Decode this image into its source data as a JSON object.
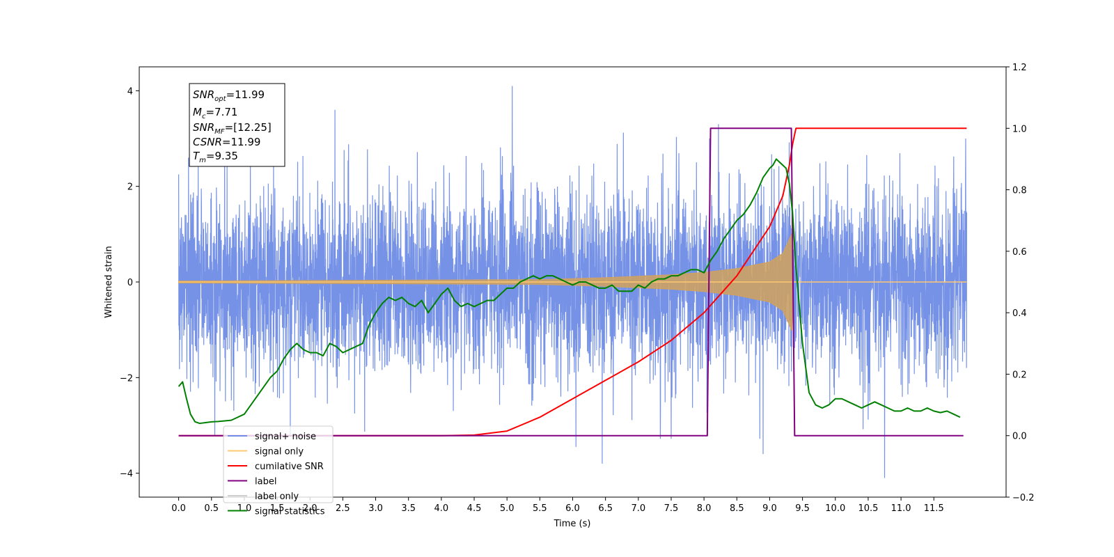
{
  "chart_data": {
    "type": "line",
    "xlabel": "Time (s)",
    "ylabel_left": "Whitened strain",
    "xlim": [
      -0.6,
      12.6
    ],
    "ylim_left": [
      -4.5,
      4.5
    ],
    "ylim_right": [
      -0.2,
      1.2
    ],
    "x_ticks": [
      "0.0",
      "0.5",
      "1.0",
      "1.5",
      "2.0",
      "2.5",
      "3.0",
      "3.5",
      "4.0",
      "4.5",
      "5.0",
      "5.5",
      "6.0",
      "6.5",
      "7.0",
      "7.5",
      "8.0",
      "8.5",
      "9.0",
      "9.5",
      "10.0",
      "10.5",
      "11.0",
      "11.5"
    ],
    "y_ticks_left": [
      "−4",
      "−2",
      "0",
      "2",
      "4"
    ],
    "y_ticks_right": [
      "−0.2",
      "0.0",
      "0.2",
      "0.4",
      "0.6",
      "0.8",
      "1.0",
      "1.2"
    ],
    "stats_box": {
      "snr_opt": {
        "label": "SNR",
        "sub": "opt",
        "value": "=11.99"
      },
      "mc": {
        "label": "M",
        "sub": "c",
        "value": "=7.71"
      },
      "snr_mf": {
        "label": "SNR",
        "sub": "MF",
        "value": "=[12.25]"
      },
      "csnr": {
        "label": "CSNR",
        "value": "=11.99"
      },
      "tm": {
        "label": "T",
        "sub": "m",
        "value": "=9.35"
      }
    },
    "legend": {
      "placement": "lower-left",
      "entries": [
        {
          "label": "signal+ noise",
          "color": "#6f8ce6"
        },
        {
          "label": "signal only",
          "color": "#ffc870"
        },
        {
          "label": "cumilative SNR",
          "color": "#ff0000"
        },
        {
          "label": "label",
          "color": "#800080"
        },
        {
          "label": "label only",
          "color": "#cfcfcf"
        },
        {
          "label": "signal statistics",
          "color": "#008000"
        }
      ]
    },
    "series": [
      {
        "name": "signal+ noise",
        "axis": "left",
        "color": "#6f8ce6",
        "x_range": [
          0.0,
          12.0
        ],
        "amplitude_range": [
          -4.1,
          4.1
        ],
        "peaks": [
          {
            "x": 0.0,
            "y": 2.25
          },
          {
            "x": 0.15,
            "y": 2.6
          },
          {
            "x": 0.55,
            "y": -3.2
          },
          {
            "x": 1.7,
            "y": -3.2
          },
          {
            "x": 2.38,
            "y": 3.6
          },
          {
            "x": 5.08,
            "y": 4.1
          },
          {
            "x": 6.05,
            "y": -3.45
          },
          {
            "x": 6.45,
            "y": -3.8
          },
          {
            "x": 8.22,
            "y": 3.3
          },
          {
            "x": 8.9,
            "y": -3.6
          },
          {
            "x": 10.75,
            "y": -4.1
          }
        ]
      },
      {
        "name": "signal only",
        "axis": "left",
        "color": "#d2a25c",
        "x": [
          0.0,
          5.5,
          6.5,
          7.5,
          8.0,
          8.5,
          9.0,
          9.2,
          9.3,
          9.35,
          9.36,
          12.0
        ],
        "envelope": [
          0.02,
          0.05,
          0.09,
          0.15,
          0.2,
          0.28,
          0.42,
          0.6,
          0.9,
          1.05,
          0.0,
          0.0
        ]
      },
      {
        "name": "cumilative SNR",
        "axis": "right",
        "color": "#ff0000",
        "x": [
          0.0,
          4.0,
          4.5,
          5.0,
          5.5,
          6.0,
          6.5,
          7.0,
          7.5,
          8.0,
          8.5,
          9.0,
          9.2,
          9.3,
          9.35,
          9.4,
          12.0
        ],
        "y": [
          0.0,
          0.0,
          0.002,
          0.015,
          0.06,
          0.12,
          0.18,
          0.24,
          0.31,
          0.4,
          0.52,
          0.68,
          0.78,
          0.88,
          0.95,
          1.0,
          1.0
        ]
      },
      {
        "name": "label",
        "axis": "right",
        "color": "#800080",
        "x": [
          0.0,
          8.05,
          8.1,
          9.33,
          9.38,
          11.95
        ],
        "y": [
          0.0,
          0.0,
          1.0,
          1.0,
          0.0,
          0.0
        ]
      },
      {
        "name": "signal statistics",
        "axis": "right",
        "color": "#008000",
        "x": [
          0.0,
          0.06,
          0.12,
          0.18,
          0.25,
          0.32,
          0.4,
          0.5,
          0.6,
          0.7,
          0.8,
          0.9,
          1.0,
          1.1,
          1.2,
          1.3,
          1.4,
          1.5,
          1.6,
          1.7,
          1.8,
          1.9,
          2.0,
          2.1,
          2.2,
          2.3,
          2.4,
          2.5,
          2.6,
          2.7,
          2.8,
          2.9,
          3.0,
          3.1,
          3.2,
          3.3,
          3.4,
          3.5,
          3.6,
          3.7,
          3.8,
          3.9,
          4.0,
          4.1,
          4.2,
          4.3,
          4.4,
          4.5,
          4.6,
          4.7,
          4.8,
          4.9,
          5.0,
          5.1,
          5.2,
          5.3,
          5.4,
          5.5,
          5.6,
          5.7,
          5.8,
          5.9,
          6.0,
          6.1,
          6.2,
          6.3,
          6.4,
          6.5,
          6.6,
          6.7,
          6.8,
          6.9,
          7.0,
          7.1,
          7.2,
          7.3,
          7.4,
          7.5,
          7.6,
          7.7,
          7.8,
          7.9,
          8.0,
          8.1,
          8.2,
          8.3,
          8.4,
          8.5,
          8.6,
          8.7,
          8.8,
          8.9,
          9.0,
          9.05,
          9.1,
          9.15,
          9.2,
          9.25,
          9.3,
          9.35,
          9.4,
          9.5,
          9.6,
          9.7,
          9.8,
          9.9,
          10.0,
          10.1,
          10.2,
          10.3,
          10.4,
          10.5,
          10.6,
          10.7,
          10.8,
          10.9,
          11.0,
          11.1,
          11.2,
          11.3,
          11.4,
          11.5,
          11.6,
          11.7,
          11.8,
          11.9
        ],
        "y": [
          0.16,
          0.175,
          0.12,
          0.07,
          0.045,
          0.04,
          0.042,
          0.045,
          0.046,
          0.048,
          0.05,
          0.06,
          0.07,
          0.1,
          0.13,
          0.16,
          0.19,
          0.21,
          0.25,
          0.28,
          0.3,
          0.28,
          0.27,
          0.27,
          0.26,
          0.3,
          0.29,
          0.27,
          0.28,
          0.29,
          0.3,
          0.36,
          0.4,
          0.43,
          0.45,
          0.44,
          0.45,
          0.43,
          0.42,
          0.44,
          0.4,
          0.43,
          0.46,
          0.48,
          0.44,
          0.42,
          0.43,
          0.42,
          0.43,
          0.44,
          0.44,
          0.46,
          0.48,
          0.48,
          0.5,
          0.51,
          0.52,
          0.51,
          0.52,
          0.52,
          0.51,
          0.5,
          0.49,
          0.5,
          0.5,
          0.49,
          0.48,
          0.48,
          0.49,
          0.47,
          0.47,
          0.47,
          0.49,
          0.48,
          0.5,
          0.51,
          0.51,
          0.52,
          0.52,
          0.53,
          0.54,
          0.54,
          0.53,
          0.57,
          0.6,
          0.64,
          0.67,
          0.7,
          0.72,
          0.75,
          0.79,
          0.84,
          0.87,
          0.88,
          0.9,
          0.89,
          0.88,
          0.87,
          0.82,
          0.72,
          0.55,
          0.3,
          0.14,
          0.1,
          0.09,
          0.1,
          0.12,
          0.12,
          0.11,
          0.1,
          0.09,
          0.1,
          0.11,
          0.1,
          0.09,
          0.08,
          0.08,
          0.09,
          0.08,
          0.08,
          0.09,
          0.08,
          0.075,
          0.08,
          0.07,
          0.06
        ]
      }
    ]
  }
}
